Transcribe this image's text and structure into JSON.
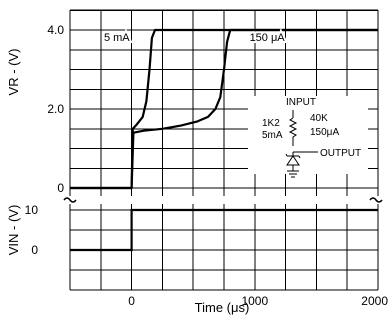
{
  "chart_data": [
    {
      "type": "line",
      "title": "",
      "xlabel": "Time (μs)",
      "ylabel": "VR - (V)",
      "xlim": [
        -500,
        2000
      ],
      "ylim": [
        0,
        4
      ],
      "y_ticks": [
        {
          "v": 4.0,
          "label": "4.0"
        },
        {
          "v": 2.0,
          "label": "2.0"
        },
        {
          "v": 0,
          "label": "0"
        }
      ],
      "grid": true,
      "series": [
        {
          "name": "5 mA",
          "points": [
            [
              -500,
              0
            ],
            [
              0,
              0
            ],
            [
              10,
              1.5
            ],
            [
              40,
              1.6
            ],
            [
              90,
              1.8
            ],
            [
              120,
              2.2
            ],
            [
              145,
              3.0
            ],
            [
              165,
              3.8
            ],
            [
              190,
              4.0
            ],
            [
              2000,
              4.0
            ]
          ]
        },
        {
          "name": "150 μA",
          "points": [
            [
              -500,
              0
            ],
            [
              0,
              0
            ],
            [
              15,
              1.4
            ],
            [
              100,
              1.45
            ],
            [
              250,
              1.5
            ],
            [
              400,
              1.58
            ],
            [
              530,
              1.68
            ],
            [
              620,
              1.8
            ],
            [
              680,
              2.0
            ],
            [
              720,
              2.3
            ],
            [
              750,
              3.0
            ],
            [
              775,
              3.7
            ],
            [
              800,
              4.0
            ],
            [
              2000,
              4.0
            ]
          ]
        }
      ],
      "circuit": {
        "input_label": "INPUT",
        "output_label": "OUTPUT",
        "r_left_value": "1K2",
        "r_left_current": "5mA",
        "r_right_value": "40K",
        "r_right_current": "150μA"
      }
    },
    {
      "type": "line",
      "title": "",
      "xlabel": "Time (μs)",
      "ylabel": "VIN - (V)",
      "xlim": [
        -500,
        2000
      ],
      "ylim": [
        0,
        10
      ],
      "y_ticks": [
        {
          "v": 10,
          "label": "10"
        },
        {
          "v": 0,
          "label": "0"
        }
      ],
      "x_ticks": [
        {
          "v": 0,
          "label": "0"
        },
        {
          "v": 1000,
          "label": "1000"
        },
        {
          "v": 2000,
          "label": "2000"
        }
      ],
      "grid": true,
      "series": [
        {
          "name": "",
          "points": [
            [
              -500,
              0
            ],
            [
              0,
              0
            ],
            [
              0,
              10
            ],
            [
              2000,
              10
            ]
          ]
        }
      ]
    }
  ]
}
